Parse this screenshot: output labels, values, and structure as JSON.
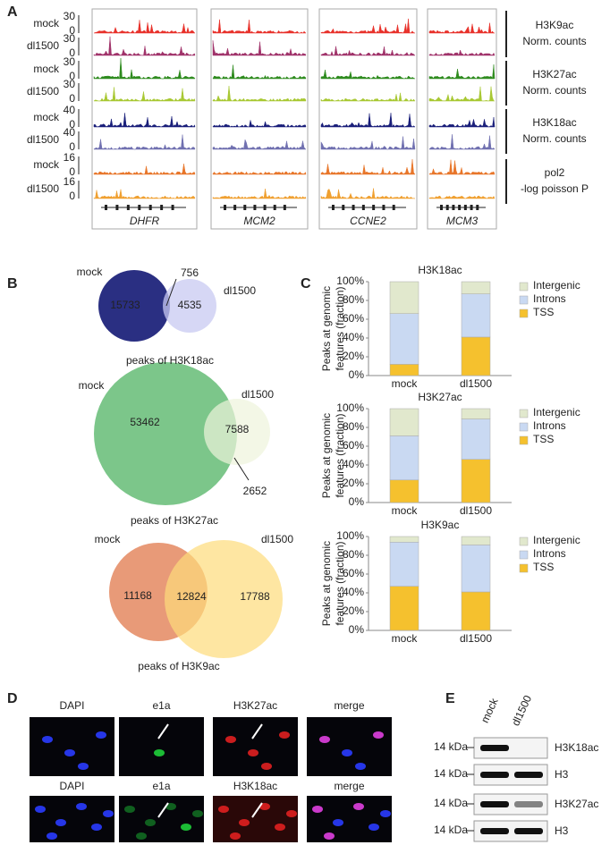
{
  "panel_a": {
    "label": "A",
    "rows": [
      {
        "condition": "mock",
        "top": 30,
        "bottom": 0
      },
      {
        "condition": "dl1500",
        "top": 30,
        "bottom": 0
      },
      {
        "condition": "mock",
        "top": 30,
        "bottom": 0
      },
      {
        "condition": "dl1500",
        "top": 30,
        "bottom": 0
      },
      {
        "condition": "mock",
        "top": 40,
        "bottom": 0
      },
      {
        "condition": "dl1500",
        "top": 40,
        "bottom": 0
      },
      {
        "condition": "mock",
        "top": 16,
        "bottom": 0
      },
      {
        "condition": "dl1500",
        "top": 16,
        "bottom": 0
      }
    ],
    "groups": [
      [
        "H3K9ac",
        "Norm. counts"
      ],
      [
        "H3K27ac",
        "Norm. counts"
      ],
      [
        "H3K18ac",
        "Norm. counts"
      ],
      [
        "pol2",
        "-log poisson P"
      ]
    ],
    "genes": [
      "DHFR",
      "MCM2",
      "CCNE2",
      "MCM3"
    ]
  },
  "panel_b": {
    "label": "B",
    "venns": [
      {
        "left": "mock",
        "right": "dl1500",
        "left_only": 15733,
        "overlap": 756,
        "right_only": 4535,
        "caption": "peaks of H3K18ac"
      },
      {
        "left": "mock",
        "right": "dl1500",
        "left_only": 53462,
        "overlap": 7588,
        "right_only": 2652,
        "caption": "peaks of H3K27ac"
      },
      {
        "left": "mock",
        "right": "dl1500",
        "left_only": 11168,
        "overlap": 12824,
        "right_only": 17788,
        "caption": "peaks of H3K9ac"
      }
    ]
  },
  "panel_c": {
    "label": "C",
    "charts": [
      {
        "type": "bar",
        "stacked": true,
        "title": "H3K18ac",
        "y_label": [
          "Peaks at genomic",
          "features (fraction)"
        ],
        "categories": [
          "mock",
          "dl1500"
        ],
        "series": [
          {
            "name": "TSS",
            "color": "#f5c12e",
            "values": [
              12,
              41
            ]
          },
          {
            "name": "Introns",
            "color": "#c9d9f2",
            "values": [
              54,
              46
            ]
          },
          {
            "name": "Intergenic",
            "color": "#e1e8cd",
            "values": [
              34,
              13
            ]
          }
        ],
        "ylim": [
          0,
          100
        ],
        "yticks": [
          {
            "value": 0,
            "label": "0%"
          },
          {
            "value": 20,
            "label": "20%"
          },
          {
            "value": 40,
            "label": "40%"
          },
          {
            "value": 60,
            "label": "60%"
          },
          {
            "value": 80,
            "label": "80%"
          },
          {
            "value": 100,
            "label": "100%"
          }
        ]
      },
      {
        "type": "bar",
        "stacked": true,
        "title": "H3K27ac",
        "y_label": [
          "Peaks at genomic",
          "features (fraction)"
        ],
        "categories": [
          "mock",
          "dl1500"
        ],
        "series": [
          {
            "name": "TSS",
            "color": "#f5c12e",
            "values": [
              24,
              46
            ]
          },
          {
            "name": "Introns",
            "color": "#c9d9f2",
            "values": [
              47,
              43
            ]
          },
          {
            "name": "Intergenic",
            "color": "#e1e8cd",
            "values": [
              29,
              11
            ]
          }
        ],
        "ylim": [
          0,
          100
        ],
        "yticks": [
          {
            "value": 0,
            "label": "0%"
          },
          {
            "value": 20,
            "label": "20%"
          },
          {
            "value": 40,
            "label": "40%"
          },
          {
            "value": 60,
            "label": "60%"
          },
          {
            "value": 80,
            "label": "80%"
          },
          {
            "value": 100,
            "label": "100%"
          }
        ]
      },
      {
        "type": "bar",
        "stacked": true,
        "title": "H3K9ac",
        "y_label": [
          "Peaks at genomic",
          "features (fraction)"
        ],
        "categories": [
          "mock",
          "dl1500"
        ],
        "series": [
          {
            "name": "TSS",
            "color": "#f5c12e",
            "values": [
              47,
              41
            ]
          },
          {
            "name": "Introns",
            "color": "#c9d9f2",
            "values": [
              47,
              50
            ]
          },
          {
            "name": "Intergenic",
            "color": "#e1e8cd",
            "values": [
              6,
              9
            ]
          }
        ],
        "ylim": [
          0,
          100
        ],
        "yticks": [
          {
            "value": 0,
            "label": "0%"
          },
          {
            "value": 20,
            "label": "20%"
          },
          {
            "value": 40,
            "label": "40%"
          },
          {
            "value": 60,
            "label": "60%"
          },
          {
            "value": 80,
            "label": "80%"
          },
          {
            "value": 100,
            "label": "100%"
          }
        ]
      }
    ]
  },
  "panel_d": {
    "label": "D",
    "rows": [
      [
        "DAPI",
        "e1a",
        "H3K27ac",
        "merge"
      ],
      [
        "DAPI",
        "e1a",
        "H3K18ac",
        "merge"
      ]
    ]
  },
  "panel_e": {
    "label": "E",
    "lanes": [
      "mock",
      "dl1500"
    ],
    "blots": [
      {
        "size": "14 kDa",
        "target": "H3K18ac"
      },
      {
        "size": "14 kDa",
        "target": "H3"
      },
      {
        "size": "14 kDa",
        "target": "H3K27ac"
      },
      {
        "size": "14 kDa",
        "target": "H3"
      }
    ]
  }
}
